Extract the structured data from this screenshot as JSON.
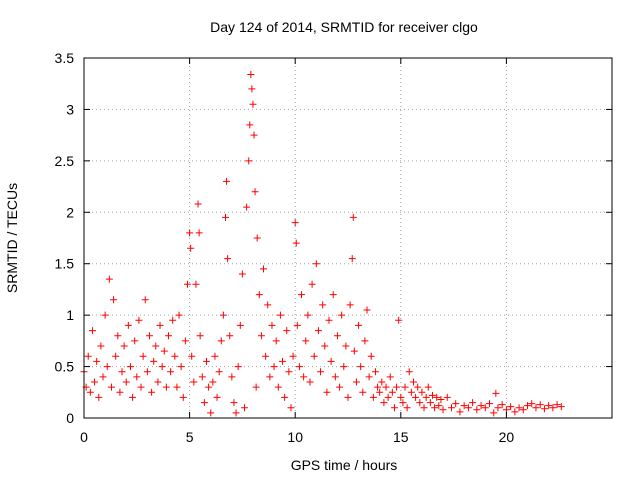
{
  "chart_data": {
    "type": "scatter",
    "title": "Day 124 of 2014, SRMTID for receiver clgo",
    "xlabel": "GPS time / hours",
    "ylabel": "SRMTID / TECUs",
    "xlim": [
      0,
      25
    ],
    "ylim": [
      0,
      3.5
    ],
    "x_ticks": [
      0,
      5,
      10,
      15,
      20
    ],
    "y_ticks": [
      0,
      0.5,
      1,
      1.5,
      2,
      2.5,
      3,
      3.5
    ],
    "x_tick_labels": [
      "0",
      "5",
      "10",
      "15",
      "20"
    ],
    "y_tick_labels": [
      "0",
      "0.5",
      "1",
      "1.5",
      "2",
      "2.5",
      "3",
      "3.5"
    ],
    "grid": true,
    "marker": "+",
    "series": [
      {
        "name": "SRMTID",
        "color": "#ff0000",
        "points": [
          [
            0.0,
            0.45
          ],
          [
            0.1,
            0.3
          ],
          [
            0.2,
            0.6
          ],
          [
            0.3,
            0.25
          ],
          [
            0.4,
            0.85
          ],
          [
            0.5,
            0.35
          ],
          [
            0.6,
            0.55
          ],
          [
            0.7,
            0.2
          ],
          [
            0.8,
            0.7
          ],
          [
            0.9,
            0.4
          ],
          [
            1.0,
            1.0
          ],
          [
            1.1,
            0.5
          ],
          [
            1.2,
            1.35
          ],
          [
            1.3,
            0.3
          ],
          [
            1.4,
            1.15
          ],
          [
            1.5,
            0.6
          ],
          [
            1.6,
            0.8
          ],
          [
            1.7,
            0.25
          ],
          [
            1.8,
            0.45
          ],
          [
            1.9,
            0.7
          ],
          [
            2.0,
            0.35
          ],
          [
            2.1,
            0.9
          ],
          [
            2.2,
            0.5
          ],
          [
            2.3,
            0.2
          ],
          [
            2.4,
            0.75
          ],
          [
            2.5,
            0.4
          ],
          [
            2.6,
            0.95
          ],
          [
            2.7,
            0.3
          ],
          [
            2.8,
            0.6
          ],
          [
            2.9,
            1.15
          ],
          [
            3.0,
            0.45
          ],
          [
            3.1,
            0.8
          ],
          [
            3.2,
            0.25
          ],
          [
            3.3,
            0.55
          ],
          [
            3.4,
            0.7
          ],
          [
            3.5,
            0.35
          ],
          [
            3.6,
            0.9
          ],
          [
            3.7,
            0.5
          ],
          [
            3.8,
            0.65
          ],
          [
            3.9,
            0.3
          ],
          [
            4.0,
            0.8
          ],
          [
            4.1,
            0.45
          ],
          [
            4.2,
            0.95
          ],
          [
            4.3,
            0.6
          ],
          [
            4.4,
            0.3
          ],
          [
            4.5,
            1.0
          ],
          [
            4.6,
            0.5
          ],
          [
            4.7,
            0.2
          ],
          [
            4.8,
            0.75
          ],
          [
            4.9,
            1.3
          ],
          [
            5.0,
            1.8
          ],
          [
            5.05,
            1.65
          ],
          [
            5.1,
            0.6
          ],
          [
            5.2,
            0.35
          ],
          [
            5.3,
            1.3
          ],
          [
            5.4,
            2.08
          ],
          [
            5.45,
            1.8
          ],
          [
            5.5,
            0.8
          ],
          [
            5.6,
            0.4
          ],
          [
            5.7,
            0.15
          ],
          [
            5.8,
            0.55
          ],
          [
            5.9,
            0.3
          ],
          [
            6.0,
            0.05
          ],
          [
            6.1,
            0.35
          ],
          [
            6.2,
            0.6
          ],
          [
            6.3,
            0.2
          ],
          [
            6.4,
            0.45
          ],
          [
            6.5,
            0.75
          ],
          [
            6.6,
            1.0
          ],
          [
            6.7,
            1.95
          ],
          [
            6.75,
            2.3
          ],
          [
            6.8,
            1.55
          ],
          [
            6.9,
            0.8
          ],
          [
            7.0,
            0.4
          ],
          [
            7.1,
            0.15
          ],
          [
            7.2,
            0.05
          ],
          [
            7.3,
            0.5
          ],
          [
            7.4,
            0.9
          ],
          [
            7.5,
            1.4
          ],
          [
            7.6,
            0.1
          ],
          [
            7.7,
            2.05
          ],
          [
            7.8,
            2.5
          ],
          [
            7.85,
            2.85
          ],
          [
            7.9,
            3.34
          ],
          [
            7.95,
            3.2
          ],
          [
            8.0,
            3.05
          ],
          [
            8.05,
            2.75
          ],
          [
            8.1,
            2.2
          ],
          [
            8.15,
            0.3
          ],
          [
            8.2,
            1.75
          ],
          [
            8.3,
            1.2
          ],
          [
            8.4,
            0.8
          ],
          [
            8.5,
            1.45
          ],
          [
            8.6,
            0.6
          ],
          [
            8.7,
            1.1
          ],
          [
            8.8,
            0.4
          ],
          [
            8.9,
            0.9
          ],
          [
            9.0,
            0.5
          ],
          [
            9.1,
            0.75
          ],
          [
            9.2,
            0.3
          ],
          [
            9.3,
            1.0
          ],
          [
            9.4,
            0.55
          ],
          [
            9.5,
            0.2
          ],
          [
            9.6,
            0.85
          ],
          [
            9.7,
            0.45
          ],
          [
            9.8,
            0.1
          ],
          [
            9.9,
            0.6
          ],
          [
            10.0,
            1.9
          ],
          [
            10.05,
            1.7
          ],
          [
            10.1,
            0.9
          ],
          [
            10.2,
            0.5
          ],
          [
            10.3,
            1.2
          ],
          [
            10.4,
            0.4
          ],
          [
            10.5,
            0.75
          ],
          [
            10.6,
            1.0
          ],
          [
            10.7,
            0.35
          ],
          [
            10.8,
            1.3
          ],
          [
            10.9,
            0.6
          ],
          [
            11.0,
            1.5
          ],
          [
            11.1,
            0.85
          ],
          [
            11.2,
            0.45
          ],
          [
            11.3,
            1.1
          ],
          [
            11.4,
            0.7
          ],
          [
            11.5,
            0.25
          ],
          [
            11.6,
            0.95
          ],
          [
            11.7,
            0.55
          ],
          [
            11.8,
            1.2
          ],
          [
            11.9,
            0.4
          ],
          [
            12.0,
            0.8
          ],
          [
            12.1,
            0.3
          ],
          [
            12.2,
            1.0
          ],
          [
            12.3,
            0.5
          ],
          [
            12.4,
            0.7
          ],
          [
            12.5,
            0.2
          ],
          [
            12.6,
            1.1
          ],
          [
            12.7,
            1.55
          ],
          [
            12.75,
            1.95
          ],
          [
            12.8,
            0.65
          ],
          [
            12.9,
            0.35
          ],
          [
            13.0,
            0.9
          ],
          [
            13.1,
            0.5
          ],
          [
            13.2,
            0.25
          ],
          [
            13.3,
            0.75
          ],
          [
            13.4,
            1.05
          ],
          [
            13.5,
            0.4
          ],
          [
            13.6,
            0.6
          ],
          [
            13.7,
            0.2
          ],
          [
            13.8,
            0.45
          ],
          [
            13.9,
            0.3
          ],
          [
            14.0,
            0.25
          ],
          [
            14.1,
            0.35
          ],
          [
            14.2,
            0.15
          ],
          [
            14.3,
            0.3
          ],
          [
            14.4,
            0.2
          ],
          [
            14.5,
            0.4
          ],
          [
            14.6,
            0.25
          ],
          [
            14.7,
            0.1
          ],
          [
            14.8,
            0.3
          ],
          [
            14.9,
            0.95
          ],
          [
            15.0,
            0.2
          ],
          [
            15.1,
            0.15
          ],
          [
            15.2,
            0.3
          ],
          [
            15.3,
            0.1
          ],
          [
            15.4,
            0.45
          ],
          [
            15.5,
            0.25
          ],
          [
            15.6,
            0.35
          ],
          [
            15.7,
            0.2
          ],
          [
            15.8,
            0.3
          ],
          [
            15.9,
            0.15
          ],
          [
            16.0,
            0.25
          ],
          [
            16.1,
            0.1
          ],
          [
            16.2,
            0.2
          ],
          [
            16.3,
            0.3
          ],
          [
            16.4,
            0.15
          ],
          [
            16.5,
            0.22
          ],
          [
            16.6,
            0.1
          ],
          [
            16.7,
            0.2
          ],
          [
            16.8,
            0.12
          ],
          [
            16.9,
            0.18
          ],
          [
            17.0,
            0.08
          ],
          [
            17.2,
            0.2
          ],
          [
            17.4,
            0.1
          ],
          [
            17.6,
            0.14
          ],
          [
            17.8,
            0.06
          ],
          [
            18.0,
            0.12
          ],
          [
            18.2,
            0.1
          ],
          [
            18.4,
            0.15
          ],
          [
            18.6,
            0.08
          ],
          [
            18.8,
            0.12
          ],
          [
            19.0,
            0.1
          ],
          [
            19.2,
            0.14
          ],
          [
            19.4,
            0.05
          ],
          [
            19.5,
            0.24
          ],
          [
            19.6,
            0.1
          ],
          [
            19.8,
            0.13
          ],
          [
            20.0,
            0.08
          ],
          [
            20.2,
            0.11
          ],
          [
            20.4,
            0.06
          ],
          [
            20.6,
            0.1
          ],
          [
            20.8,
            0.08
          ],
          [
            21.0,
            0.12
          ],
          [
            21.2,
            0.14
          ],
          [
            21.4,
            0.1
          ],
          [
            21.6,
            0.13
          ],
          [
            21.8,
            0.09
          ],
          [
            22.0,
            0.12
          ],
          [
            22.2,
            0.1
          ],
          [
            22.4,
            0.13
          ],
          [
            22.6,
            0.11
          ]
        ]
      }
    ]
  }
}
